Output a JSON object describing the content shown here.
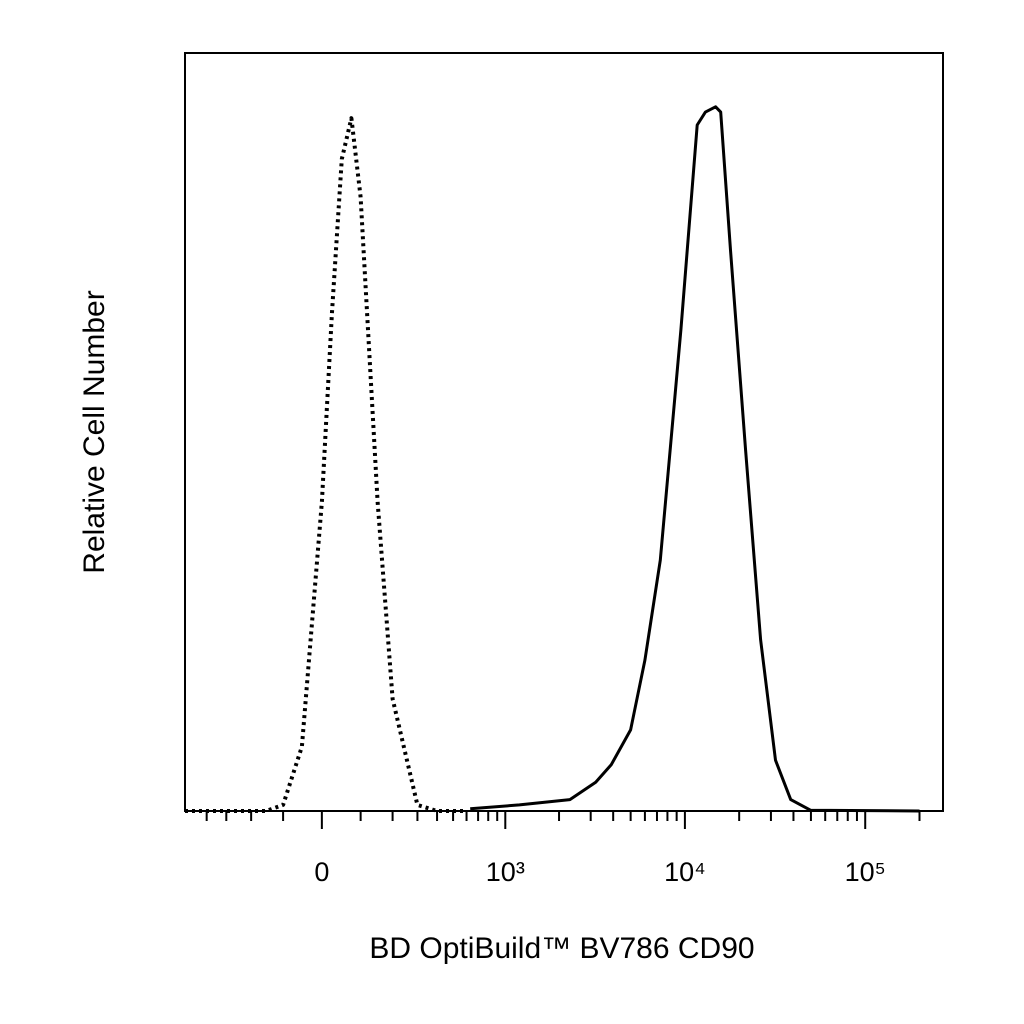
{
  "chart_data": {
    "type": "line",
    "xlabel": "BD OptiBuild™ BV786 CD90",
    "ylabel": "Relative Cell Number",
    "xscale": "biexponential",
    "xlim": [
      -540,
      270000
    ],
    "ylim": [
      0,
      100
    ],
    "xticks": [
      {
        "value": 0,
        "label": "0"
      },
      {
        "value": 1000,
        "label": "10³"
      },
      {
        "value": 10000,
        "label": "10⁴"
      },
      {
        "value": 100000,
        "label": "10⁵"
      }
    ],
    "xminorticks": [
      -400,
      -300,
      -200,
      -100,
      100,
      200,
      300,
      400,
      500,
      600,
      700,
      800,
      900,
      2000,
      3000,
      4000,
      5000,
      6000,
      7000,
      8000,
      9000,
      20000,
      30000,
      40000,
      50000,
      60000,
      70000,
      80000,
      90000,
      200000
    ],
    "series": [
      {
        "color": "#000000",
        "line_style": "dotted",
        "x": [
          -540,
          -150,
          -100,
          -50,
          0,
          25,
          50,
          75,
          100,
          150,
          200,
          300,
          400,
          600
        ],
        "values": [
          0,
          0,
          0.8,
          8.5,
          40.8,
          65.6,
          86,
          91.4,
          81,
          40.8,
          14.8,
          0.8,
          0,
          0
        ]
      },
      {
        "color": "#000000",
        "line_style": "solid",
        "x": [
          630,
          1200,
          2300,
          3200,
          3900,
          5000,
          6000,
          7300,
          9500,
          11700,
          13000,
          14800,
          15800,
          17900,
          21700,
          26300,
          31800,
          38600,
          49700,
          200000
        ],
        "values": [
          0.3,
          0.8,
          1.5,
          3.8,
          6.1,
          10.7,
          19.9,
          33.1,
          63.5,
          90.5,
          92.2,
          92.9,
          92.2,
          74,
          47.6,
          22.6,
          6.7,
          1.5,
          0.1,
          0
        ]
      }
    ]
  }
}
